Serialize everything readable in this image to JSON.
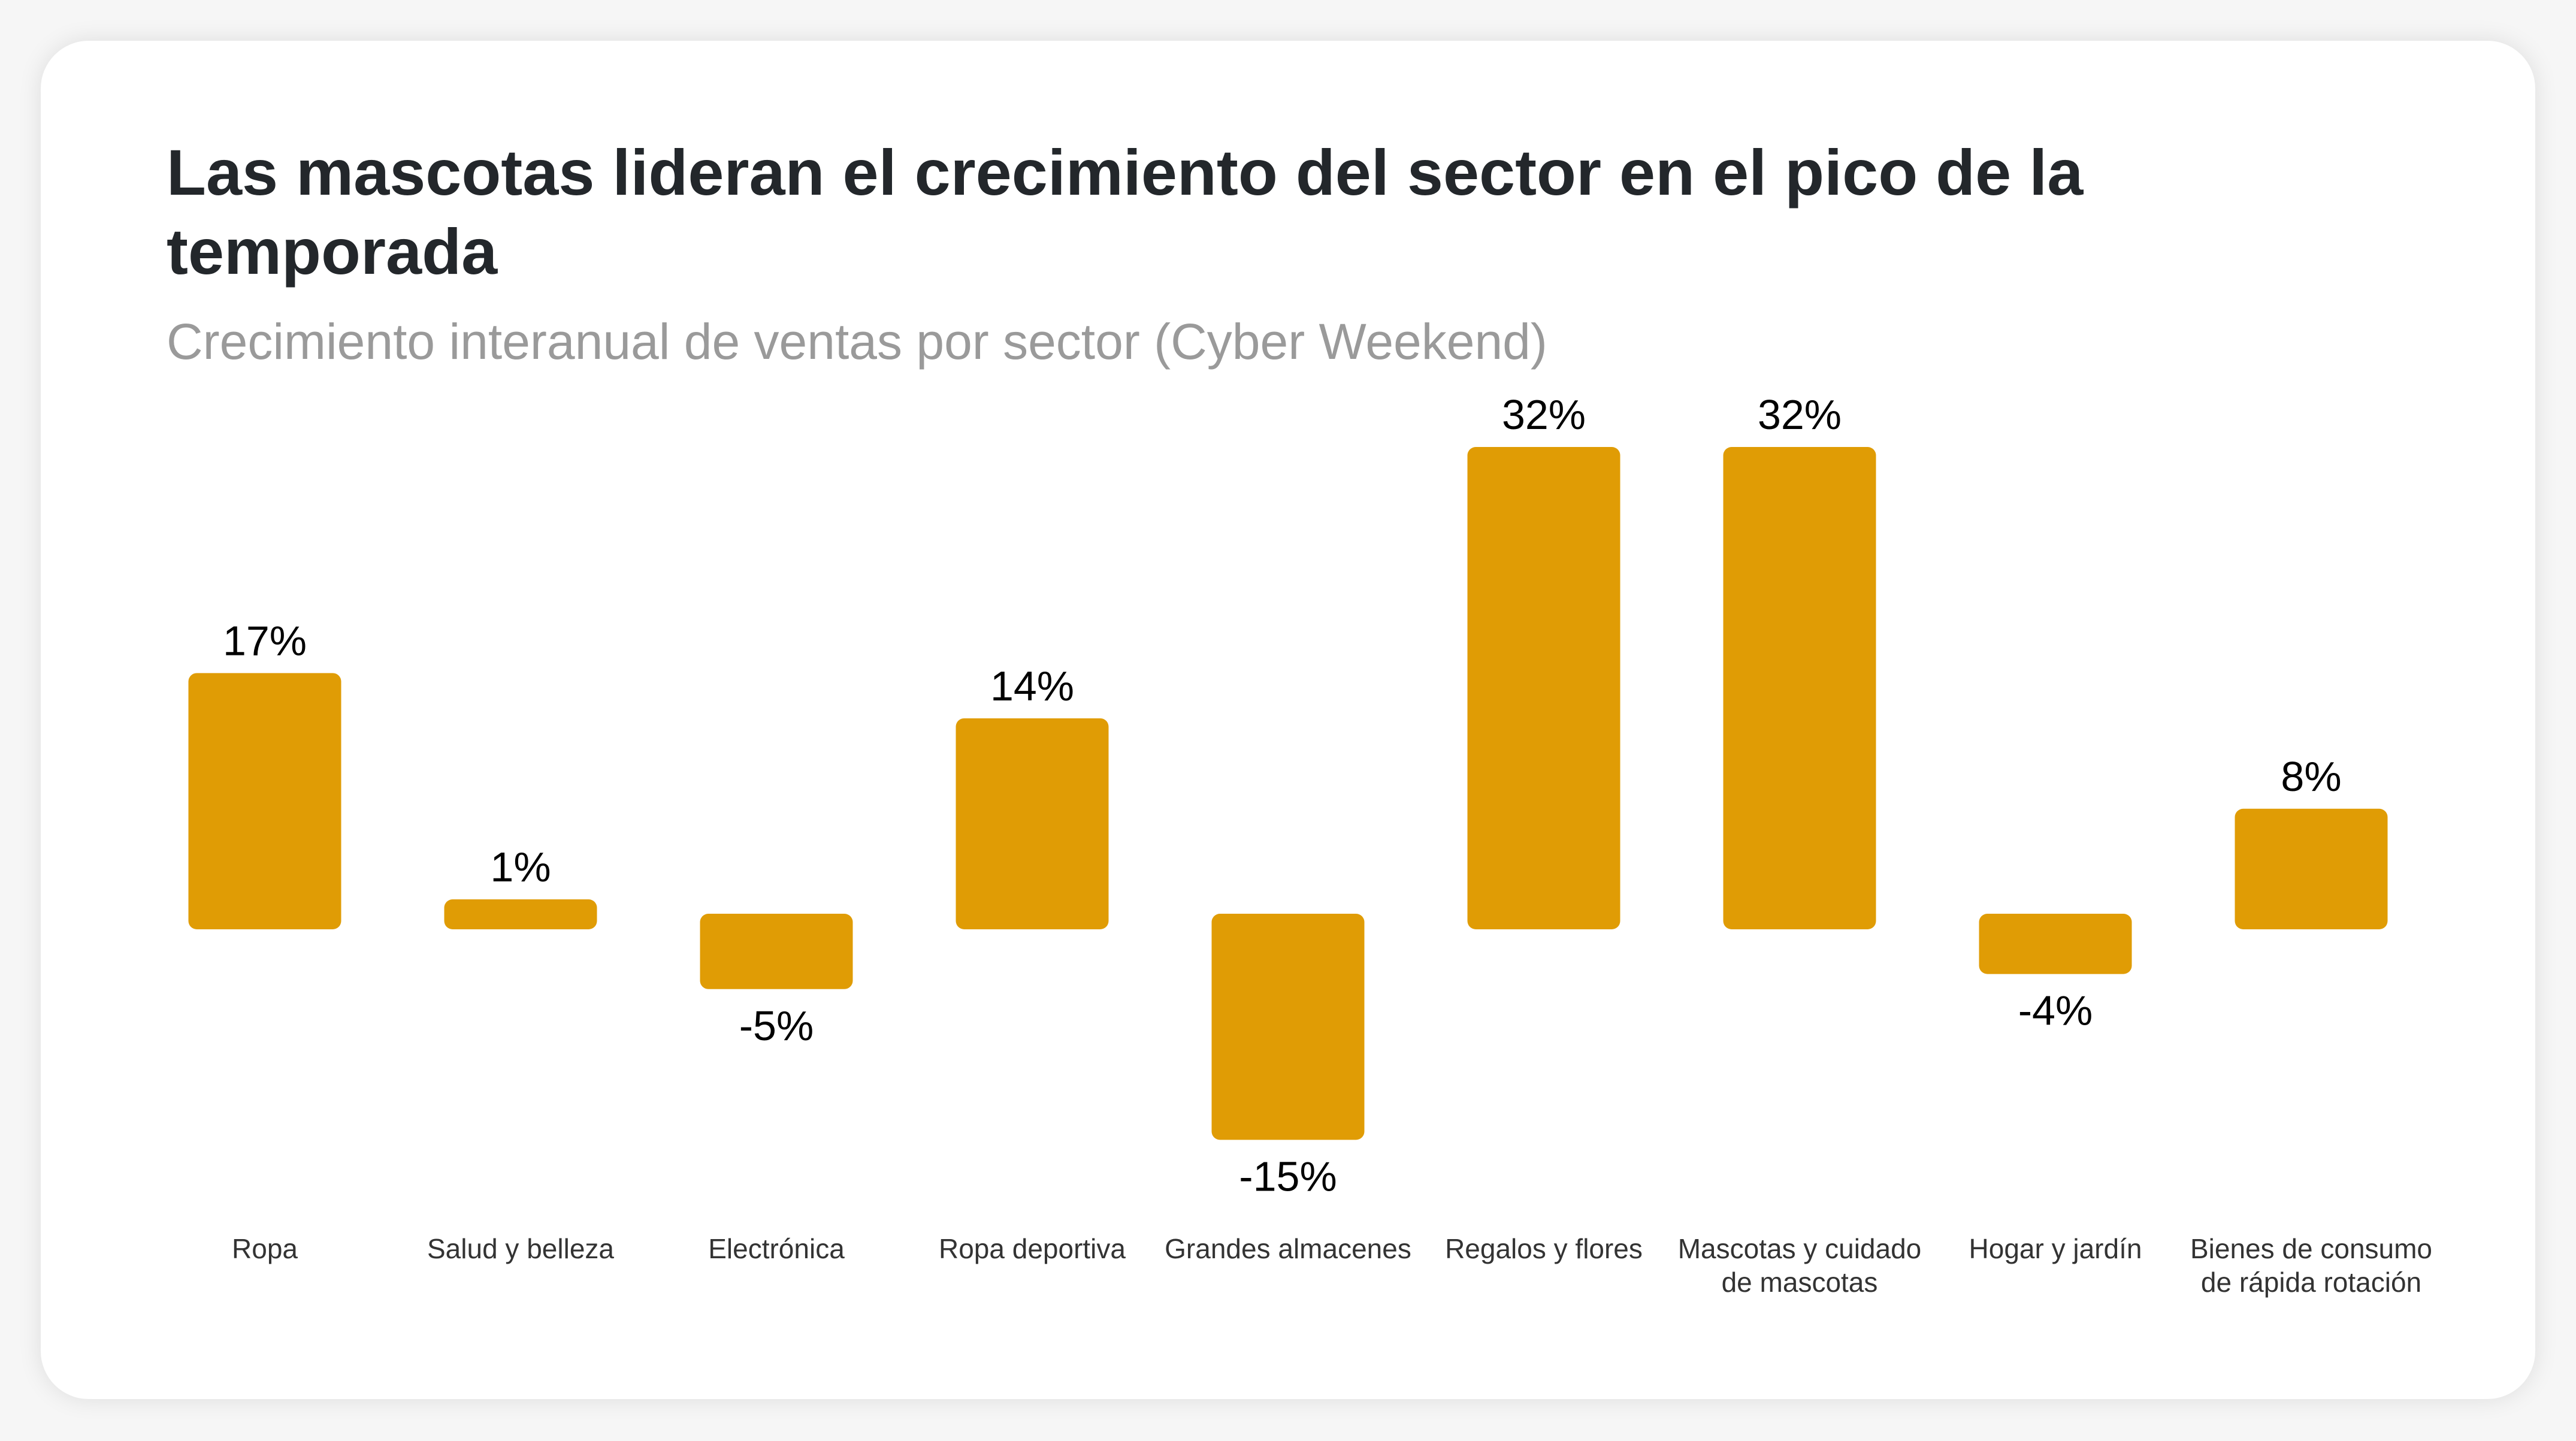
{
  "chart_data": {
    "type": "bar",
    "title": "Las mascotas lideran el crecimiento del sector en el pico de la temporada",
    "subtitle": "Crecimiento interanual de ventas por sector (Cyber Weekend)",
    "xlabel": "",
    "ylabel": "",
    "grid": false,
    "categories": [
      [
        "Ropa"
      ],
      [
        "Salud y belleza"
      ],
      [
        "Electrónica"
      ],
      [
        "Ropa deportiva"
      ],
      [
        "Grandes almacenes"
      ],
      [
        "Regalos y flores"
      ],
      [
        "Mascotas y cuidado",
        "de mascotas"
      ],
      [
        "Hogar y jardín"
      ],
      [
        "Bienes de consumo",
        "de rápida rotación"
      ]
    ],
    "values": [
      17,
      1,
      -5,
      14,
      -15,
      32,
      32,
      -4,
      8
    ],
    "value_labels": [
      "17%",
      "1%",
      "-5%",
      "14%",
      "-15%",
      "32%",
      "32%",
      "-4%",
      "8%"
    ],
    "unit": "%",
    "ylim": [
      -15,
      32
    ],
    "bar_color": "#E09C05"
  }
}
